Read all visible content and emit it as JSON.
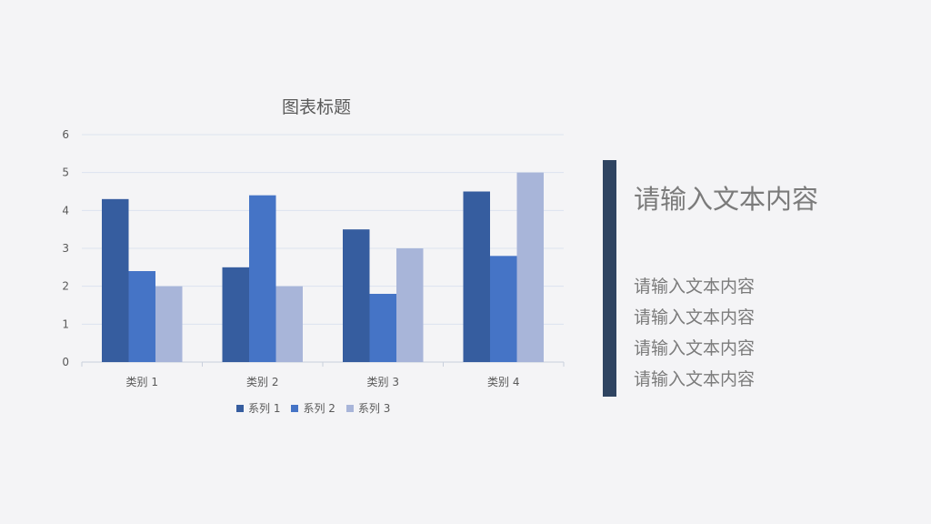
{
  "chart_data": {
    "type": "bar",
    "title": "图表标题",
    "categories": [
      "类别 1",
      "类别 2",
      "类别 3",
      "类别 4"
    ],
    "series": [
      {
        "name": "系列 1",
        "values": [
          4.3,
          2.5,
          3.5,
          4.5
        ],
        "color": "#365d9f"
      },
      {
        "name": "系列 2",
        "values": [
          2.4,
          4.4,
          1.8,
          2.8
        ],
        "color": "#4574c6"
      },
      {
        "name": "系列 3",
        "values": [
          2.0,
          2.0,
          3.0,
          5.0
        ],
        "color": "#a8b5d9"
      }
    ],
    "ylim": [
      0,
      6
    ],
    "yticks": [
      "0",
      "1",
      "2",
      "3",
      "4",
      "5",
      "6"
    ],
    "grid": true,
    "legend": "bottom"
  },
  "side": {
    "heading": "请输入文本内容",
    "lines": [
      "请输入文本内容",
      "请输入文本内容",
      "请输入文本内容",
      "请输入文本内容"
    ]
  }
}
